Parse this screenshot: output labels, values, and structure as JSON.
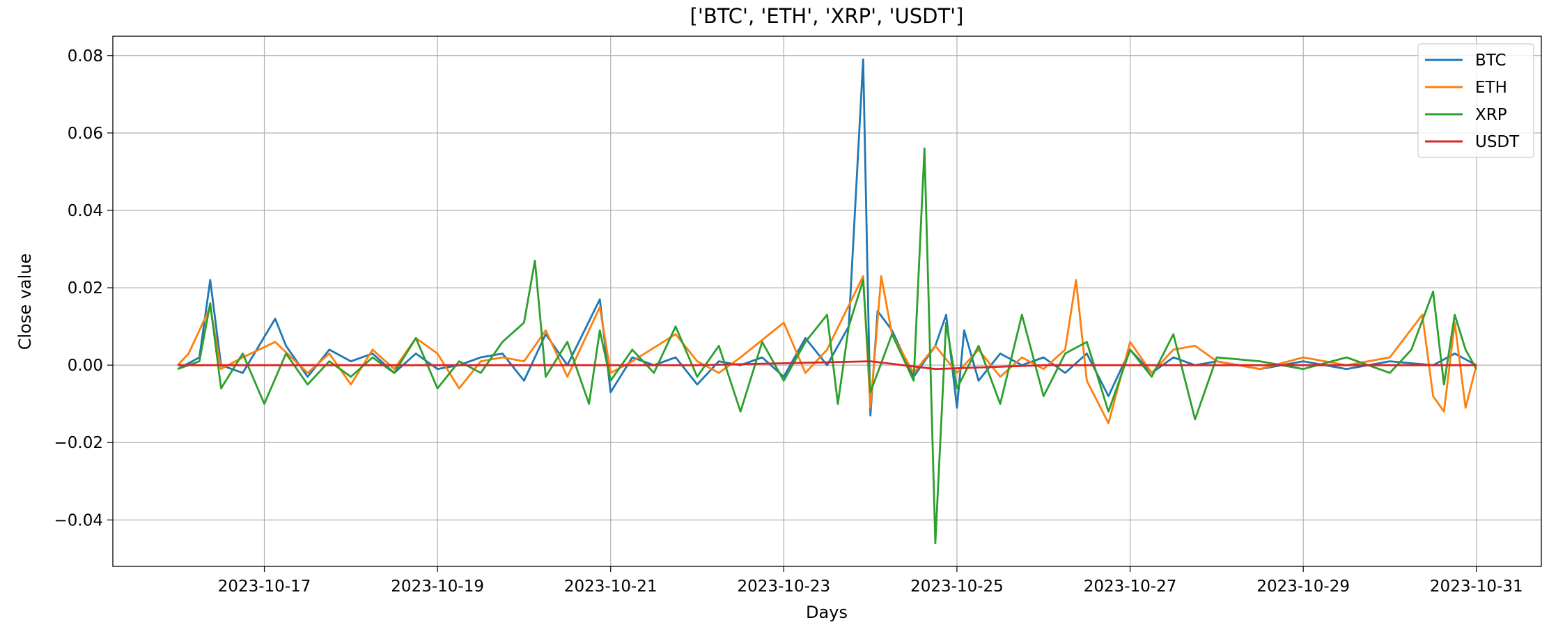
{
  "chart_data": {
    "type": "line",
    "title": "['BTC', 'ETH', 'XRP', 'USDT']",
    "xlabel": "Days",
    "ylabel": "Close value",
    "xlim": [
      "2023-10-15T06:00",
      "2023-10-31T18:00"
    ],
    "ylim": [
      -0.052,
      0.085
    ],
    "x_ticks": [
      "2023-10-17",
      "2023-10-19",
      "2023-10-21",
      "2023-10-23",
      "2023-10-25",
      "2023-10-27",
      "2023-10-29",
      "2023-10-31"
    ],
    "y_ticks": [
      -0.04,
      -0.02,
      0.0,
      0.02,
      0.04,
      0.06,
      0.08
    ],
    "y_tick_labels": [
      "−0.04",
      "−0.02",
      "0.00",
      "0.02",
      "0.04",
      "0.06",
      "0.08"
    ],
    "grid": true,
    "legend_position": "top-right",
    "series": [
      {
        "name": "BTC",
        "color": "#1f77b4",
        "points": [
          [
            "2023-10-16T00:00",
            -0.001
          ],
          [
            "2023-10-16T06:00",
            0.002
          ],
          [
            "2023-10-16T09:00",
            0.022
          ],
          [
            "2023-10-16T12:00",
            0.0
          ],
          [
            "2023-10-16T18:00",
            -0.002
          ],
          [
            "2023-10-17T03:00",
            0.012
          ],
          [
            "2023-10-17T06:00",
            0.005
          ],
          [
            "2023-10-17T12:00",
            -0.003
          ],
          [
            "2023-10-17T18:00",
            0.004
          ],
          [
            "2023-10-18T00:00",
            0.001
          ],
          [
            "2023-10-18T06:00",
            0.003
          ],
          [
            "2023-10-18T12:00",
            -0.002
          ],
          [
            "2023-10-18T18:00",
            0.003
          ],
          [
            "2023-10-19T00:00",
            -0.001
          ],
          [
            "2023-10-19T06:00",
            0.0
          ],
          [
            "2023-10-19T12:00",
            0.002
          ],
          [
            "2023-10-19T18:00",
            0.003
          ],
          [
            "2023-10-20T00:00",
            -0.004
          ],
          [
            "2023-10-20T06:00",
            0.008
          ],
          [
            "2023-10-20T12:00",
            0.0
          ],
          [
            "2023-10-20T21:00",
            0.017
          ],
          [
            "2023-10-21T00:00",
            -0.007
          ],
          [
            "2023-10-21T06:00",
            0.002
          ],
          [
            "2023-10-21T12:00",
            0.0
          ],
          [
            "2023-10-21T18:00",
            0.002
          ],
          [
            "2023-10-22T00:00",
            -0.005
          ],
          [
            "2023-10-22T06:00",
            0.001
          ],
          [
            "2023-10-22T12:00",
            0.0
          ],
          [
            "2023-10-22T18:00",
            0.002
          ],
          [
            "2023-10-23T00:00",
            -0.003
          ],
          [
            "2023-10-23T06:00",
            0.007
          ],
          [
            "2023-10-23T12:00",
            0.0
          ],
          [
            "2023-10-23T18:00",
            0.01
          ],
          [
            "2023-10-23T22:00",
            0.079
          ],
          [
            "2023-10-24T00:00",
            -0.013
          ],
          [
            "2023-10-24T02:00",
            0.014
          ],
          [
            "2023-10-24T06:00",
            0.009
          ],
          [
            "2023-10-24T12:00",
            -0.003
          ],
          [
            "2023-10-24T18:00",
            0.005
          ],
          [
            "2023-10-24T21:00",
            0.013
          ],
          [
            "2023-10-25T00:00",
            -0.011
          ],
          [
            "2023-10-25T02:00",
            0.009
          ],
          [
            "2023-10-25T06:00",
            -0.004
          ],
          [
            "2023-10-25T12:00",
            0.003
          ],
          [
            "2023-10-25T18:00",
            0.0
          ],
          [
            "2023-10-26T00:00",
            0.002
          ],
          [
            "2023-10-26T06:00",
            -0.002
          ],
          [
            "2023-10-26T12:00",
            0.003
          ],
          [
            "2023-10-26T18:00",
            -0.008
          ],
          [
            "2023-10-27T00:00",
            0.004
          ],
          [
            "2023-10-27T06:00",
            -0.002
          ],
          [
            "2023-10-27T12:00",
            0.002
          ],
          [
            "2023-10-27T18:00",
            0.0
          ],
          [
            "2023-10-28T00:00",
            0.001
          ],
          [
            "2023-10-28T12:00",
            -0.001
          ],
          [
            "2023-10-29T00:00",
            0.001
          ],
          [
            "2023-10-29T12:00",
            -0.001
          ],
          [
            "2023-10-30T00:00",
            0.001
          ],
          [
            "2023-10-30T12:00",
            0.0
          ],
          [
            "2023-10-30T18:00",
            0.003
          ],
          [
            "2023-10-31T00:00",
            0.0
          ]
        ]
      },
      {
        "name": "ETH",
        "color": "#ff7f0e",
        "points": [
          [
            "2023-10-16T00:00",
            0.0
          ],
          [
            "2023-10-16T03:00",
            0.003
          ],
          [
            "2023-10-16T09:00",
            0.015
          ],
          [
            "2023-10-16T12:00",
            -0.001
          ],
          [
            "2023-10-16T18:00",
            0.002
          ],
          [
            "2023-10-17T03:00",
            0.006
          ],
          [
            "2023-10-17T12:00",
            -0.002
          ],
          [
            "2023-10-17T18:00",
            0.003
          ],
          [
            "2023-10-18T00:00",
            -0.005
          ],
          [
            "2023-10-18T06:00",
            0.004
          ],
          [
            "2023-10-18T12:00",
            -0.001
          ],
          [
            "2023-10-18T18:00",
            0.007
          ],
          [
            "2023-10-19T00:00",
            0.003
          ],
          [
            "2023-10-19T06:00",
            -0.006
          ],
          [
            "2023-10-19T12:00",
            0.001
          ],
          [
            "2023-10-19T18:00",
            0.002
          ],
          [
            "2023-10-20T00:00",
            0.001
          ],
          [
            "2023-10-20T06:00",
            0.009
          ],
          [
            "2023-10-20T12:00",
            -0.003
          ],
          [
            "2023-10-20T21:00",
            0.015
          ],
          [
            "2023-10-21T00:00",
            -0.002
          ],
          [
            "2023-10-21T06:00",
            0.001
          ],
          [
            "2023-10-21T18:00",
            0.008
          ],
          [
            "2023-10-22T00:00",
            0.001
          ],
          [
            "2023-10-22T06:00",
            -0.002
          ],
          [
            "2023-10-22T12:00",
            0.002
          ],
          [
            "2023-10-23T00:00",
            0.011
          ],
          [
            "2023-10-23T06:00",
            -0.002
          ],
          [
            "2023-10-23T12:00",
            0.004
          ],
          [
            "2023-10-23T22:00",
            0.023
          ],
          [
            "2023-10-24T00:00",
            -0.011
          ],
          [
            "2023-10-24T03:00",
            0.023
          ],
          [
            "2023-10-24T06:00",
            0.008
          ],
          [
            "2023-10-24T12:00",
            -0.002
          ],
          [
            "2023-10-24T18:00",
            0.005
          ],
          [
            "2023-10-25T00:00",
            -0.002
          ],
          [
            "2023-10-25T06:00",
            0.004
          ],
          [
            "2023-10-25T12:00",
            -0.003
          ],
          [
            "2023-10-25T18:00",
            0.002
          ],
          [
            "2023-10-26T00:00",
            -0.001
          ],
          [
            "2023-10-26T06:00",
            0.004
          ],
          [
            "2023-10-26T09:00",
            0.022
          ],
          [
            "2023-10-26T12:00",
            -0.004
          ],
          [
            "2023-10-26T18:00",
            -0.015
          ],
          [
            "2023-10-27T00:00",
            0.006
          ],
          [
            "2023-10-27T06:00",
            -0.002
          ],
          [
            "2023-10-27T12:00",
            0.004
          ],
          [
            "2023-10-27T18:00",
            0.005
          ],
          [
            "2023-10-28T00:00",
            0.001
          ],
          [
            "2023-10-28T12:00",
            -0.001
          ],
          [
            "2023-10-29T00:00",
            0.002
          ],
          [
            "2023-10-29T12:00",
            0.0
          ],
          [
            "2023-10-30T00:00",
            0.002
          ],
          [
            "2023-10-30T09:00",
            0.013
          ],
          [
            "2023-10-30T12:00",
            -0.008
          ],
          [
            "2023-10-30T15:00",
            -0.012
          ],
          [
            "2023-10-30T18:00",
            0.011
          ],
          [
            "2023-10-30T21:00",
            -0.011
          ],
          [
            "2023-10-31T00:00",
            0.0
          ]
        ]
      },
      {
        "name": "XRP",
        "color": "#2ca02c",
        "points": [
          [
            "2023-10-16T00:00",
            -0.001
          ],
          [
            "2023-10-16T06:00",
            0.001
          ],
          [
            "2023-10-16T09:00",
            0.016
          ],
          [
            "2023-10-16T12:00",
            -0.006
          ],
          [
            "2023-10-16T18:00",
            0.003
          ],
          [
            "2023-10-17T00:00",
            -0.01
          ],
          [
            "2023-10-17T06:00",
            0.003
          ],
          [
            "2023-10-17T12:00",
            -0.005
          ],
          [
            "2023-10-17T18:00",
            0.001
          ],
          [
            "2023-10-18T00:00",
            -0.003
          ],
          [
            "2023-10-18T06:00",
            0.002
          ],
          [
            "2023-10-18T12:00",
            -0.002
          ],
          [
            "2023-10-18T18:00",
            0.007
          ],
          [
            "2023-10-19T00:00",
            -0.006
          ],
          [
            "2023-10-19T06:00",
            0.001
          ],
          [
            "2023-10-19T12:00",
            -0.002
          ],
          [
            "2023-10-19T18:00",
            0.006
          ],
          [
            "2023-10-20T00:00",
            0.011
          ],
          [
            "2023-10-20T03:00",
            0.027
          ],
          [
            "2023-10-20T06:00",
            -0.003
          ],
          [
            "2023-10-20T12:00",
            0.006
          ],
          [
            "2023-10-20T18:00",
            -0.01
          ],
          [
            "2023-10-20T21:00",
            0.009
          ],
          [
            "2023-10-21T00:00",
            -0.004
          ],
          [
            "2023-10-21T06:00",
            0.004
          ],
          [
            "2023-10-21T12:00",
            -0.002
          ],
          [
            "2023-10-21T18:00",
            0.01
          ],
          [
            "2023-10-22T00:00",
            -0.003
          ],
          [
            "2023-10-22T06:00",
            0.005
          ],
          [
            "2023-10-22T12:00",
            -0.012
          ],
          [
            "2023-10-22T18:00",
            0.006
          ],
          [
            "2023-10-23T00:00",
            -0.004
          ],
          [
            "2023-10-23T06:00",
            0.006
          ],
          [
            "2023-10-23T12:00",
            0.013
          ],
          [
            "2023-10-23T15:00",
            -0.01
          ],
          [
            "2023-10-23T18:00",
            0.01
          ],
          [
            "2023-10-23T22:00",
            0.022
          ],
          [
            "2023-10-24T00:00",
            -0.007
          ],
          [
            "2023-10-24T06:00",
            0.008
          ],
          [
            "2023-10-24T12:00",
            -0.004
          ],
          [
            "2023-10-24T15:00",
            0.056
          ],
          [
            "2023-10-24T18:00",
            -0.046
          ],
          [
            "2023-10-24T21:00",
            0.011
          ],
          [
            "2023-10-25T00:00",
            -0.006
          ],
          [
            "2023-10-25T06:00",
            0.005
          ],
          [
            "2023-10-25T12:00",
            -0.01
          ],
          [
            "2023-10-25T18:00",
            0.013
          ],
          [
            "2023-10-26T00:00",
            -0.008
          ],
          [
            "2023-10-26T06:00",
            0.003
          ],
          [
            "2023-10-26T12:00",
            0.006
          ],
          [
            "2023-10-26T18:00",
            -0.012
          ],
          [
            "2023-10-27T00:00",
            0.004
          ],
          [
            "2023-10-27T06:00",
            -0.003
          ],
          [
            "2023-10-27T12:00",
            0.008
          ],
          [
            "2023-10-27T18:00",
            -0.014
          ],
          [
            "2023-10-28T00:00",
            0.002
          ],
          [
            "2023-10-28T12:00",
            0.001
          ],
          [
            "2023-10-29T00:00",
            -0.001
          ],
          [
            "2023-10-29T12:00",
            0.002
          ],
          [
            "2023-10-30T00:00",
            -0.002
          ],
          [
            "2023-10-30T06:00",
            0.004
          ],
          [
            "2023-10-30T12:00",
            0.019
          ],
          [
            "2023-10-30T15:00",
            -0.005
          ],
          [
            "2023-10-30T18:00",
            0.013
          ],
          [
            "2023-10-30T21:00",
            0.004
          ],
          [
            "2023-10-31T00:00",
            -0.001
          ]
        ]
      },
      {
        "name": "USDT",
        "color": "#d62728",
        "points": [
          [
            "2023-10-16T00:00",
            0.0
          ],
          [
            "2023-10-18T00:00",
            0.0
          ],
          [
            "2023-10-20T00:00",
            0.0
          ],
          [
            "2023-10-22T00:00",
            0.0
          ],
          [
            "2023-10-24T00:00",
            0.001
          ],
          [
            "2023-10-24T18:00",
            -0.001
          ],
          [
            "2023-10-26T00:00",
            0.0
          ],
          [
            "2023-10-28T00:00",
            0.0
          ],
          [
            "2023-10-30T00:00",
            0.0
          ],
          [
            "2023-10-31T00:00",
            0.0
          ]
        ]
      }
    ]
  }
}
